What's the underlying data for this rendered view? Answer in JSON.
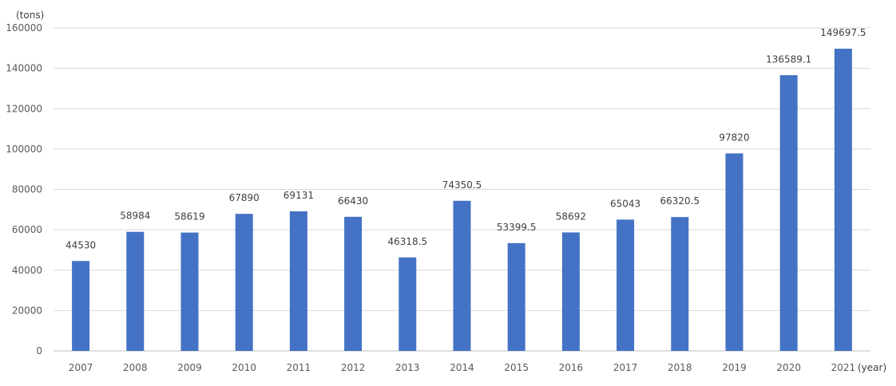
{
  "chart_data": {
    "type": "bar",
    "y_unit_label": "(tons)",
    "x_unit_label": "(year)",
    "categories": [
      "2007",
      "2008",
      "2009",
      "2010",
      "2011",
      "2012",
      "2013",
      "2014",
      "2015",
      "2016",
      "2017",
      "2018",
      "2019",
      "2020",
      "2021"
    ],
    "values": [
      44530,
      58984,
      58619,
      67890,
      69131,
      66430,
      46318.5,
      74350.5,
      53399.5,
      58692,
      65043,
      66320.5,
      97820,
      136589.1,
      149697.5
    ],
    "data_labels": [
      "44530",
      "58984",
      "58619",
      "67890",
      "69131",
      "66430",
      "46318.5",
      "74350.5",
      "53399.5",
      "58692",
      "65043",
      "66320.5",
      "97820",
      "136589.1",
      "149697.5"
    ],
    "ylim": [
      0,
      160000
    ],
    "yticks": [
      0,
      20000,
      40000,
      60000,
      80000,
      100000,
      120000,
      140000,
      160000
    ],
    "ytick_labels": [
      "0",
      "20000",
      "40000",
      "60000",
      "80000",
      "100000",
      "120000",
      "140000",
      "160000"
    ],
    "grid": true,
    "legend": "none",
    "colors": {
      "bar": "#4472C4",
      "grid": "#d9d9d9",
      "axis": "#bfbfbf"
    }
  }
}
